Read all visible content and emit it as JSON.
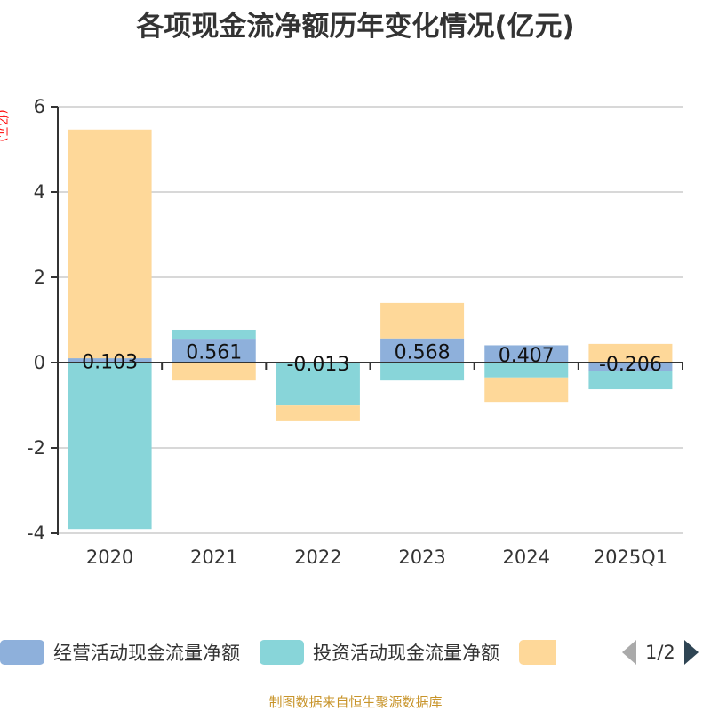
{
  "chart_data": {
    "type": "bar",
    "stacked": true,
    "title": "各项现金流净额历年变化情况(亿元)",
    "ylabel": "(亿元)",
    "ylim": [
      -4,
      6
    ],
    "yticks": [
      -4,
      -2,
      0,
      2,
      4,
      6
    ],
    "grid": true,
    "legend_placement": "bottom",
    "categories": [
      "2020",
      "2021",
      "2022",
      "2023",
      "2024",
      "2025Q1"
    ],
    "series": [
      {
        "name": "经营活动现金流量净额",
        "color": "#8eb0db",
        "values": [
          0.103,
          0.561,
          -0.013,
          0.568,
          0.407,
          -0.206
        ],
        "labels": [
          "0.103",
          "0.561",
          "-0.013",
          "0.568",
          "0.407",
          "-0.206"
        ]
      },
      {
        "name": "投资活动现金流量净额",
        "color": "#88d5d9",
        "values": [
          -3.9,
          0.21,
          -0.99,
          -0.42,
          -0.35,
          -0.42
        ]
      },
      {
        "color": "#fed899",
        "values": [
          5.36,
          -0.42,
          -0.37,
          0.83,
          -0.57,
          0.44
        ]
      }
    ]
  },
  "legend": {
    "page": "1/2"
  },
  "footer": "制图数据来自恒生聚源数据库"
}
